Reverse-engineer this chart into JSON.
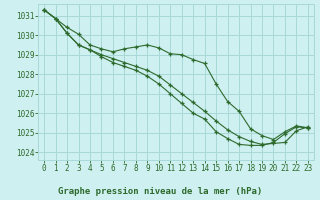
{
  "title": "Graphe pression niveau de la mer (hPa)",
  "background_color": "#cff0f0",
  "grid_color": "#a8d8d8",
  "line_color": "#2d6a2d",
  "xlim": [
    -0.5,
    23.5
  ],
  "ylim": [
    1023.6,
    1031.6
  ],
  "yticks": [
    1024,
    1025,
    1026,
    1027,
    1028,
    1029,
    1030,
    1031
  ],
  "xticks": [
    0,
    1,
    2,
    3,
    4,
    5,
    6,
    7,
    8,
    9,
    10,
    11,
    12,
    13,
    14,
    15,
    16,
    17,
    18,
    19,
    20,
    21,
    22,
    23
  ],
  "series1": [
    1031.3,
    1030.85,
    1030.4,
    1030.05,
    1029.5,
    1029.3,
    1029.15,
    1029.3,
    1029.4,
    1029.5,
    1029.35,
    1029.05,
    1029.0,
    1028.75,
    1028.55,
    1027.5,
    1026.6,
    1026.1,
    1025.2,
    1024.85,
    1024.65,
    1025.05,
    1025.35,
    1025.25
  ],
  "series2": [
    1031.3,
    1030.85,
    1030.1,
    1029.5,
    1029.25,
    1029.0,
    1028.8,
    1028.6,
    1028.4,
    1028.2,
    1027.9,
    1027.45,
    1027.0,
    1026.55,
    1026.1,
    1025.6,
    1025.15,
    1024.8,
    1024.55,
    1024.4,
    1024.45,
    1024.5,
    1025.1,
    1025.3
  ],
  "series3": [
    1031.3,
    1030.85,
    1030.1,
    1029.5,
    1029.25,
    1028.9,
    1028.6,
    1028.4,
    1028.2,
    1027.9,
    1027.5,
    1027.0,
    1026.5,
    1026.0,
    1025.7,
    1025.05,
    1024.7,
    1024.4,
    1024.35,
    1024.35,
    1024.5,
    1024.95,
    1025.3,
    1025.25
  ]
}
